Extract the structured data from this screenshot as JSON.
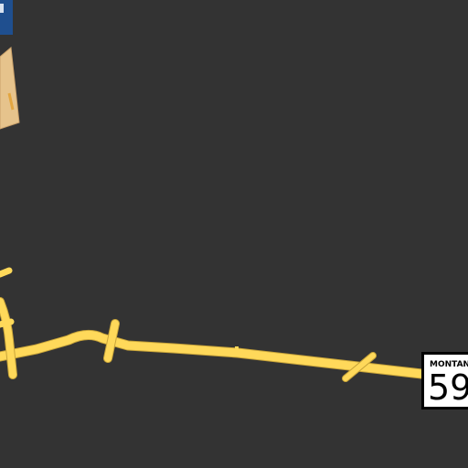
{
  "map": {
    "background_color": "#333333",
    "road_color": "#ffd95a",
    "road_outline_color": "#c9a53a",
    "building_fill": "#e6c38c",
    "building_stroke": "#c9a06a",
    "corner_sign_color": "#1f4f8f",
    "route_shield": {
      "state": "MONTANA",
      "number": "59"
    }
  }
}
